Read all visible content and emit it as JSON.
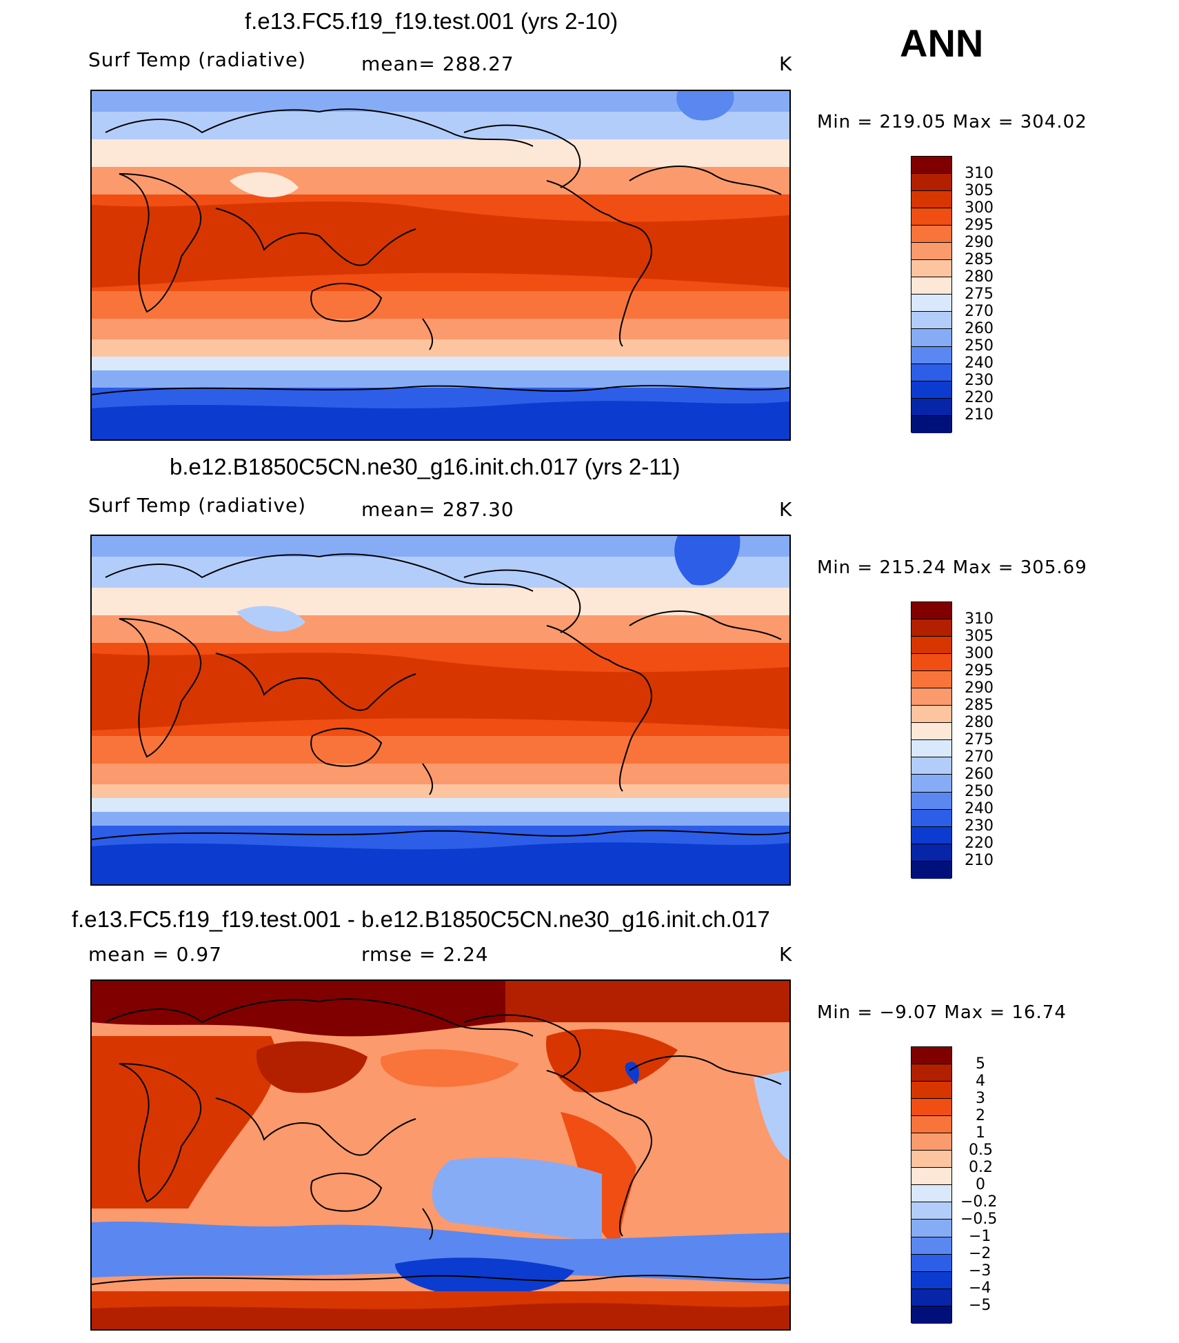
{
  "season": "ANN",
  "variable": {
    "name": "Surf Temp (radiative)",
    "units": "K"
  },
  "panels": [
    {
      "title": "f.e13.FC5.f19_f19.test.001 (yrs 2-10)",
      "left_label": "Surf Temp (radiative)",
      "stat_text": "mean=  288.27",
      "units": "K",
      "minmax": "Min  =  219.05  Max  =  304.02",
      "colorbar": {
        "labels": [
          "310",
          "305",
          "300",
          "295",
          "290",
          "285",
          "280",
          "275",
          "270",
          "260",
          "250",
          "240",
          "230",
          "220",
          "210"
        ],
        "colors": [
          "#800000",
          "#b32000",
          "#d83600",
          "#f04e12",
          "#f8743a",
          "#fb9a6c",
          "#fdc4a0",
          "#fde7d6",
          "#d9e9fb",
          "#b3cdfa",
          "#86acf6",
          "#5a88f0",
          "#2d5ee8",
          "#0b3ccf",
          "#0625a8",
          "#00107a"
        ]
      },
      "map": {
        "description_colors": {
          "tropics": "#e2401a",
          "subtropics": "#f47b4a",
          "midlat": "#fcc3a0",
          "highlat": "#9dbef6",
          "polar": "#2d5ee8",
          "antarctic": "#0a3cd0",
          "land": "#000000"
        }
      }
    },
    {
      "title": "b.e12.B1850C5CN.ne30_g16.init.ch.017 (yrs 2-11)",
      "left_label": "Surf Temp (radiative)",
      "stat_text": "mean=  287.30",
      "units": "K",
      "minmax": "Min  =  215.24  Max  =  305.69",
      "colorbar": {
        "labels": [
          "310",
          "305",
          "300",
          "295",
          "290",
          "285",
          "280",
          "275",
          "270",
          "260",
          "250",
          "240",
          "230",
          "220",
          "210"
        ],
        "colors": [
          "#800000",
          "#b32000",
          "#d83600",
          "#f04e12",
          "#f8743a",
          "#fb9a6c",
          "#fdc4a0",
          "#fde7d6",
          "#d9e9fb",
          "#b3cdfa",
          "#86acf6",
          "#5a88f0",
          "#2d5ee8",
          "#0b3ccf",
          "#0625a8",
          "#00107a"
        ]
      },
      "map": {
        "description_colors": {
          "tropics": "#dd3a12",
          "subtropics": "#f47b4a",
          "midlat": "#fcc3a0",
          "highlat": "#9dbef6",
          "polar": "#2d5ee8",
          "antarctic": "#0a34c0",
          "land": "#000000"
        }
      }
    },
    {
      "title": "f.e13.FC5.f19_f19.test.001 - b.e12.B1850C5CN.ne30_g16.init.ch.017",
      "left_label": "mean  =      0.97",
      "stat_text": "rmse  =      2.24",
      "units": "K",
      "minmax": "Min  =     −9.07  Max  =     16.74",
      "colorbar": {
        "labels": [
          "5",
          "4",
          "3",
          "2",
          "1",
          "0.5",
          "0.2",
          "0",
          "−0.2",
          "−0.5",
          "−1",
          "−2",
          "−3",
          "−4",
          "−5"
        ],
        "colors": [
          "#800000",
          "#b32000",
          "#d83600",
          "#f04e12",
          "#f8743a",
          "#fb9a6c",
          "#fdc4a0",
          "#fde7d6",
          "#d9e9fb",
          "#b3cdfa",
          "#86acf6",
          "#5a88f0",
          "#2d5ee8",
          "#0b3ccf",
          "#0625a8",
          "#00107a"
        ]
      },
      "map": {
        "description_colors": {
          "ocean_pos": "#f8926a",
          "land_pos": "#c23010",
          "arctic": "#a31a00",
          "southern_neg": "#4d80ee",
          "antarctic": "#c23010",
          "land": "#000000"
        }
      }
    }
  ]
}
